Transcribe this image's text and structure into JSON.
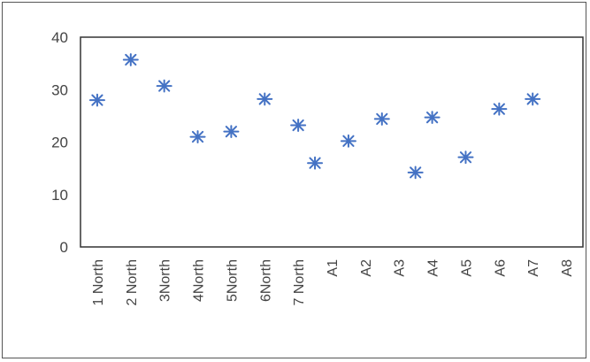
{
  "chart_data": {
    "type": "scatter",
    "title": "",
    "xlabel": "",
    "ylabel": "",
    "ylim": [
      0,
      40
    ],
    "yticks": [
      0,
      10,
      20,
      30,
      40
    ],
    "grid": false,
    "legend": "none",
    "marker": "asterisk",
    "marker_color": "#4472C4",
    "category_labels": [
      "1 North",
      "2 North",
      "3North",
      "4North",
      "5North",
      "6North",
      "7 North",
      "A1",
      "A2",
      "A3",
      "A4",
      "A5",
      "A6",
      "A7",
      "A8"
    ],
    "points": [
      {
        "x": 1,
        "y": 28
      },
      {
        "x": 2,
        "y": 35.7
      },
      {
        "x": 3,
        "y": 30.7
      },
      {
        "x": 4,
        "y": 21
      },
      {
        "x": 5,
        "y": 22
      },
      {
        "x": 6,
        "y": 28.2
      },
      {
        "x": 7,
        "y": 23.2
      },
      {
        "x": 7.5,
        "y": 16
      },
      {
        "x": 8.5,
        "y": 20.2
      },
      {
        "x": 9.5,
        "y": 24.4
      },
      {
        "x": 10.5,
        "y": 14.2
      },
      {
        "x": 11,
        "y": 24.7
      },
      {
        "x": 12,
        "y": 17.1
      },
      {
        "x": 13,
        "y": 26.3
      },
      {
        "x": 14,
        "y": 28.2
      }
    ]
  }
}
